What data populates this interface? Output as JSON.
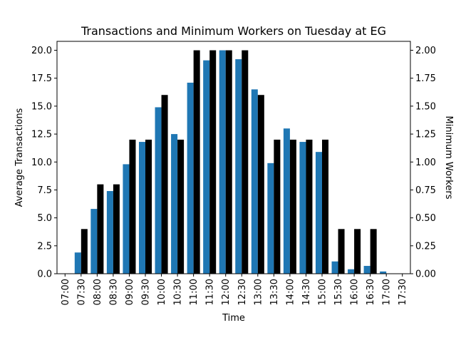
{
  "chart_data": {
    "type": "bar",
    "title": "Transactions and Minimum Workers on Tuesday at EG",
    "xlabel": "Time",
    "ylabel_left": "Average Transactions",
    "ylabel_right": "Minimum Workers",
    "categories": [
      "07:00",
      "07:30",
      "08:00",
      "08:30",
      "09:00",
      "09:30",
      "10:00",
      "10:30",
      "11:00",
      "11:30",
      "12:00",
      "12:30",
      "13:00",
      "13:30",
      "14:00",
      "14:30",
      "15:00",
      "15:30",
      "16:00",
      "16:30",
      "17:00",
      "17:30"
    ],
    "ylim_left": [
      0,
      20.8
    ],
    "ylim_right": [
      0,
      2.08
    ],
    "yticks_left": [
      "0.0",
      "2.5",
      "5.0",
      "7.5",
      "10.0",
      "12.5",
      "15.0",
      "17.5",
      "20.0"
    ],
    "yticks_right": [
      "0.00",
      "0.25",
      "0.50",
      "0.75",
      "1.00",
      "1.25",
      "1.50",
      "1.75",
      "2.00"
    ],
    "series": [
      {
        "axis": "left",
        "color": "#1f77b4",
        "values": [
          0,
          1.9,
          5.8,
          7.4,
          9.8,
          11.8,
          14.9,
          12.5,
          17.1,
          19.1,
          20.0,
          19.2,
          16.5,
          9.9,
          13.0,
          11.8,
          10.9,
          1.1,
          0.4,
          0.7,
          0.2,
          0
        ]
      },
      {
        "axis": "right",
        "color": "#000000",
        "values": [
          0,
          0.4,
          0.8,
          0.8,
          1.2,
          1.2,
          1.6,
          1.2,
          2.0,
          2.0,
          2.0,
          2.0,
          1.6,
          1.2,
          1.2,
          1.2,
          1.2,
          0.4,
          0.4,
          0.4,
          0,
          0
        ]
      }
    ],
    "legend": "none",
    "grid": false
  }
}
